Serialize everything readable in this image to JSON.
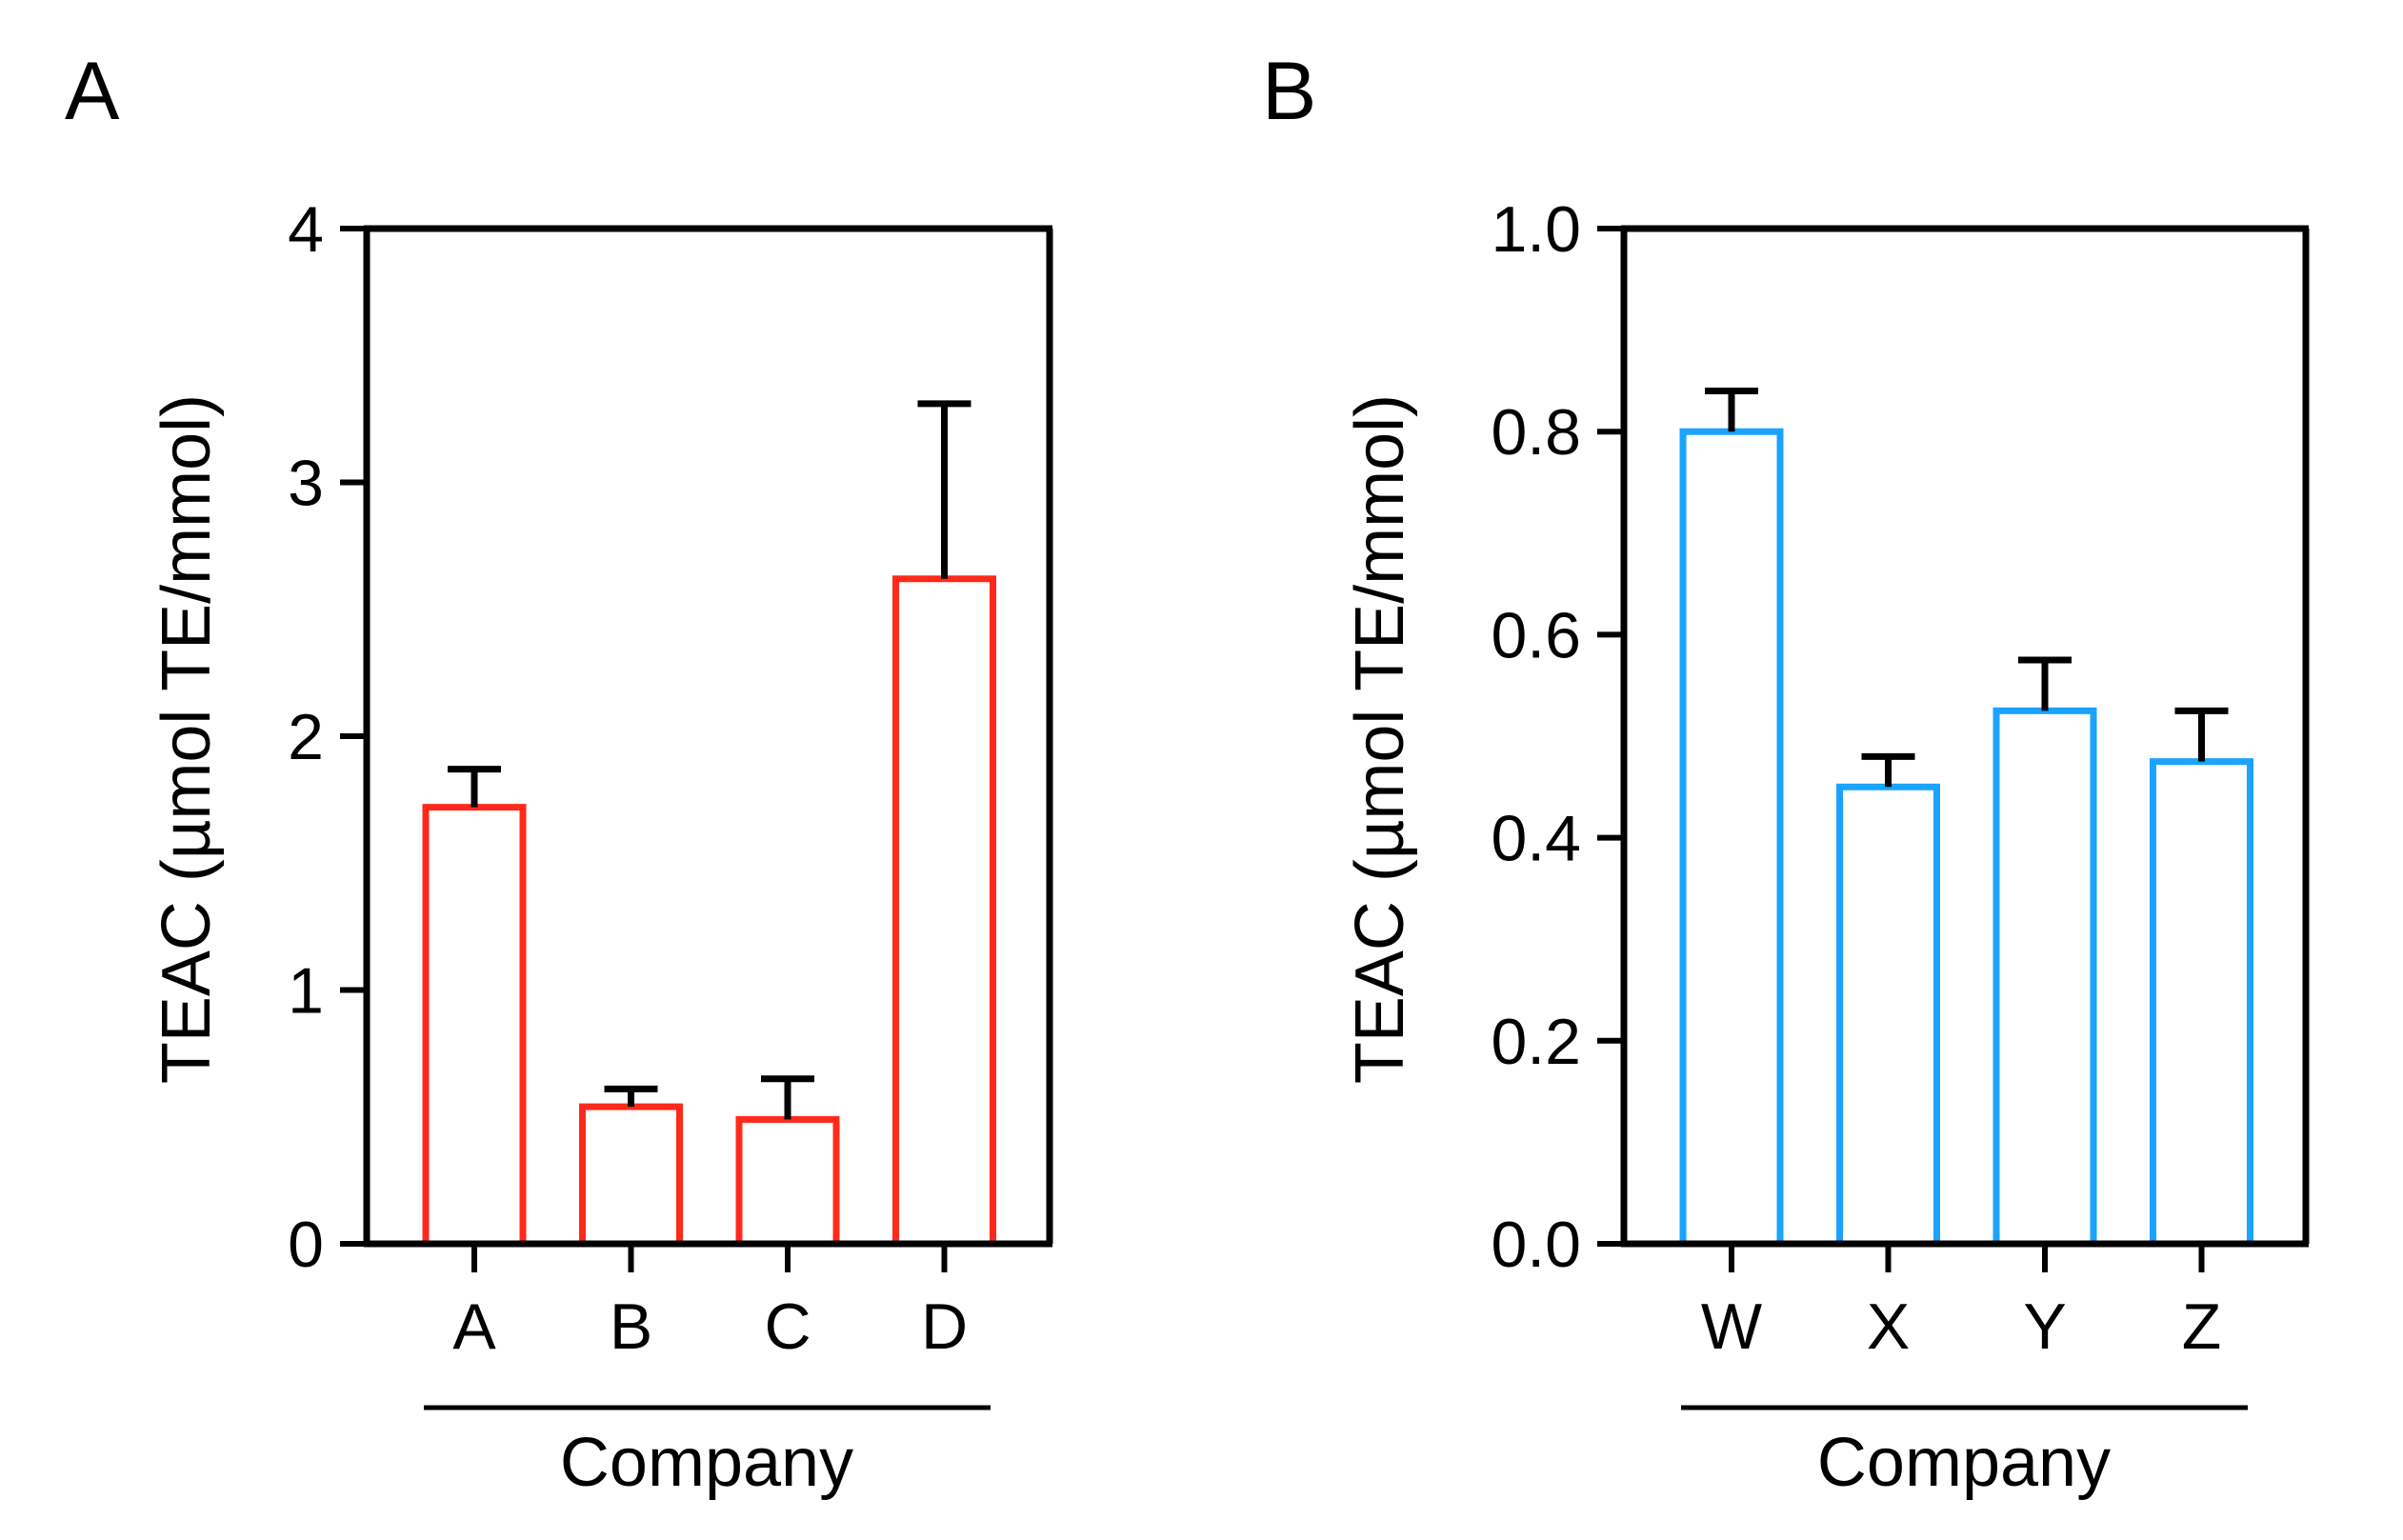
{
  "chart_data": [
    {
      "panel": "A",
      "type": "bar",
      "title": "",
      "xlabel": "Company",
      "ylabel": "TEAC (µmol TE/mmol)",
      "categories": [
        "A",
        "B",
        "C",
        "D"
      ],
      "values": [
        1.72,
        0.54,
        0.49,
        2.62
      ],
      "errors": [
        0.15,
        0.07,
        0.16,
        0.69
      ],
      "ylim": [
        0,
        4
      ],
      "yticks": [
        0,
        1,
        2,
        3,
        4
      ],
      "ytick_labels": [
        "0",
        "1",
        "2",
        "3",
        "4"
      ],
      "bar_color": "#ff2a1a",
      "grid": false,
      "legend": "none"
    },
    {
      "panel": "B",
      "type": "bar",
      "title": "",
      "xlabel": "Company",
      "ylabel": "TEAC (µmol TE/mmol)",
      "categories": [
        "W",
        "X",
        "Y",
        "Z"
      ],
      "values": [
        0.8,
        0.45,
        0.525,
        0.475
      ],
      "errors": [
        0.04,
        0.03,
        0.05,
        0.05
      ],
      "ylim": [
        0,
        1.0
      ],
      "yticks": [
        0,
        0.2,
        0.4,
        0.6,
        0.8,
        1.0
      ],
      "ytick_labels": [
        "0.0",
        "0.2",
        "0.4",
        "0.6",
        "0.8",
        "1.0"
      ],
      "bar_color": "#1aa3ff",
      "grid": false,
      "legend": "none"
    }
  ],
  "axis_color": "#000000"
}
